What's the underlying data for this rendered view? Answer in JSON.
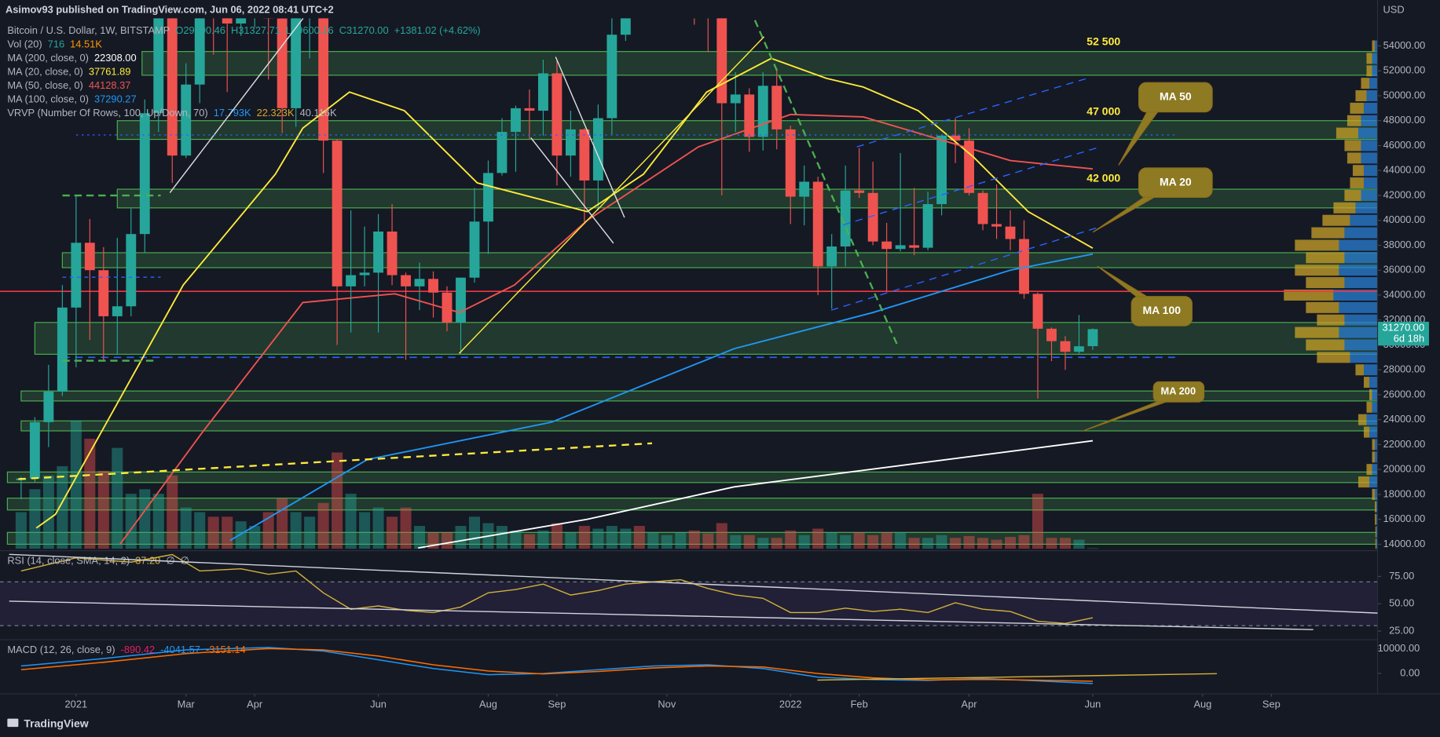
{
  "header": {
    "publisher": "Asimov93 published on TradingView.com, Jun 06, 2022 08:41 UTC+2"
  },
  "legend": [
    {
      "label": "Bitcoin / U.S. Dollar, 1W, BITSTAMP",
      "values": [
        "O29900.46",
        "H31327.71",
        "L29600.16",
        "C31270.00",
        "+1381.02 (+4.62%)"
      ],
      "colors": [
        "#26a69a",
        "#26a69a",
        "#26a69a",
        "#26a69a",
        "#26a69a"
      ]
    },
    {
      "label": "Vol (20)",
      "values": [
        "716",
        "14.51K"
      ],
      "colors": [
        "#26a69a",
        "#ff9800"
      ]
    },
    {
      "label": "MA (200, close, 0)",
      "values": [
        "22308.00"
      ],
      "colors": [
        "#ffffff"
      ]
    },
    {
      "label": "MA (20, close, 0)",
      "values": [
        "37761.89"
      ],
      "colors": [
        "#ffeb3b"
      ]
    },
    {
      "label": "MA (50, close, 0)",
      "values": [
        "44128.37"
      ],
      "colors": [
        "#ef5350"
      ]
    },
    {
      "label": "MA (100, close, 0)",
      "values": [
        "37290.27"
      ],
      "colors": [
        "#2196f3"
      ]
    },
    {
      "label": "VRVP (Number Of Rows, 100, Up/Down, 70)",
      "values": [
        "17.793K",
        "22.323K",
        "40.116K"
      ],
      "colors": [
        "#2196f3",
        "#d4a829",
        "#b2b5be"
      ]
    }
  ],
  "footer": {
    "brand": "TradingView"
  },
  "chart_data": {
    "type": "candlestick",
    "currency": "USD",
    "up_color": "#26a69a",
    "down_color": "#ef5350",
    "candles": {
      "open": [
        19150,
        19270,
        23800,
        26250,
        33000,
        38200,
        36000,
        32300,
        33100,
        38900,
        48600,
        57400,
        45200,
        50900,
        59000,
        57400,
        55800,
        57100,
        60000,
        56200,
        49000,
        56500,
        58300,
        46400,
        34700,
        35600,
        35800,
        39100,
        35600,
        34700,
        35300,
        34200,
        31800,
        35400,
        39900,
        43800,
        47100,
        49000,
        48800,
        51800,
        45200,
        47300,
        43200,
        48200,
        54900,
        61500,
        60900,
        61000,
        63300,
        65500,
        58700,
        57300,
        49400,
        50100,
        46700,
        50800,
        47300,
        41900,
        43100,
        36300,
        37900,
        42400,
        42200,
        38300,
        37700,
        38000,
        37800,
        41300,
        46800,
        46400,
        42200,
        39700,
        39500,
        38500,
        34100,
        31300,
        30300,
        29450,
        29900.46
      ],
      "high": [
        19420,
        24200,
        28400,
        34800,
        41950,
        40100,
        37850,
        38600,
        40950,
        49700,
        58350,
        57500,
        52600,
        61800,
        61000,
        58400,
        60000,
        61300,
        64800,
        57500,
        58500,
        59600,
        59600,
        46500,
        40800,
        39500,
        40500,
        41300,
        35800,
        36600,
        35900,
        34700,
        35400,
        42600,
        44800,
        48200,
        49200,
        50500,
        52900,
        52800,
        48800,
        47400,
        49300,
        56600,
        62500,
        67000,
        63700,
        64400,
        69000,
        66300,
        59600,
        59200,
        51900,
        50600,
        51900,
        52100,
        47600,
        44400,
        43500,
        38900,
        44400,
        45800,
        44700,
        39800,
        45400,
        42600,
        42300,
        46900,
        48200,
        47400,
        42400,
        42900,
        40800,
        40000,
        34200,
        31400,
        30700,
        32400,
        31327.71
      ],
      "low": [
        17600,
        19000,
        21800,
        25900,
        28200,
        30400,
        28800,
        29200,
        32300,
        37400,
        47100,
        43000,
        45000,
        49400,
        53300,
        50300,
        54800,
        55500,
        51300,
        47000,
        47500,
        53000,
        43800,
        30000,
        31000,
        34700,
        31000,
        34800,
        28800,
        32800,
        32200,
        31100,
        29300,
        35000,
        37300,
        43600,
        43900,
        46500,
        46800,
        42800,
        43500,
        39700,
        40800,
        46900,
        54400,
        59600,
        57800,
        59500,
        62300,
        55700,
        53500,
        42000,
        47100,
        45500,
        45600,
        45700,
        39700,
        39600,
        34000,
        32900,
        36300,
        41800,
        38000,
        34300,
        37500,
        37200,
        37600,
        40400,
        44600,
        42000,
        39200,
        38500,
        37600,
        33700,
        25700,
        28700,
        28000,
        29300,
        29600.16
      ],
      "close": [
        19270,
        23800,
        26250,
        33000,
        38200,
        36000,
        32300,
        33100,
        38900,
        48600,
        57400,
        45200,
        50900,
        59000,
        57400,
        55800,
        57100,
        60000,
        56200,
        49000,
        56500,
        58300,
        46400,
        34700,
        35600,
        35800,
        39100,
        35600,
        34700,
        35300,
        34200,
        31800,
        35400,
        39900,
        43800,
        47100,
        49000,
        48800,
        51800,
        45200,
        47300,
        43200,
        48200,
        54900,
        61500,
        60900,
        61000,
        63300,
        65500,
        58700,
        57300,
        49400,
        50100,
        46700,
        50800,
        47300,
        41900,
        43100,
        36300,
        37900,
        42400,
        42200,
        38300,
        37700,
        38000,
        37800,
        41300,
        46800,
        46400,
        42200,
        39700,
        39500,
        38500,
        34100,
        31300,
        30300,
        29450,
        29889,
        31270
      ]
    },
    "volume": {
      "values": [
        40000,
        65000,
        80000,
        90000,
        140000,
        120000,
        85000,
        110000,
        60000,
        65000,
        60000,
        80000,
        45000,
        40000,
        35000,
        35000,
        30000,
        25000,
        40000,
        55000,
        40000,
        35000,
        50000,
        105000,
        60000,
        40000,
        45000,
        35000,
        45000,
        25000,
        18000,
        18000,
        25000,
        35000,
        28000,
        25000,
        20000,
        16000,
        20000,
        28000,
        18000,
        25000,
        22000,
        25000,
        22000,
        25000,
        18000,
        15000,
        18000,
        20000,
        17000,
        28000,
        15000,
        15000,
        12000,
        12000,
        20000,
        15000,
        22000,
        18000,
        15000,
        18000,
        15000,
        18000,
        18000,
        12000,
        12000,
        15000,
        12000,
        14000,
        12000,
        10000,
        13000,
        15000,
        60000,
        12000,
        12000,
        10000,
        716
      ],
      "vlim": [
        0,
        580000
      ]
    },
    "ylim": [
      13630,
      56360
    ],
    "yticks": [
      {
        "value": 14000,
        "label": "14000.00"
      },
      {
        "value": 16000,
        "label": "16000.00"
      },
      {
        "value": 18000,
        "label": "18000.00"
      },
      {
        "value": 20000,
        "label": "20000.00"
      },
      {
        "value": 22000,
        "label": "22000.00"
      },
      {
        "value": 24000,
        "label": "24000.00"
      },
      {
        "value": 26000,
        "label": "26000.00"
      },
      {
        "value": 28000,
        "label": "28000.00"
      },
      {
        "value": 30000,
        "label": "30000.00"
      },
      {
        "value": 32000,
        "label": "32000.00"
      },
      {
        "value": 34000,
        "label": "34000.00"
      },
      {
        "value": 36000,
        "label": "36000.00"
      },
      {
        "value": 38000,
        "label": "38000.00"
      },
      {
        "value": 40000,
        "label": "40000.00"
      },
      {
        "value": 42000,
        "label": "42000.00"
      },
      {
        "value": 44000,
        "label": "44000.00"
      },
      {
        "value": 46000,
        "label": "46000.00"
      },
      {
        "value": 48000,
        "label": "48000.00"
      },
      {
        "value": 50000,
        "label": "50000.00"
      },
      {
        "value": 52000,
        "label": "52000.00"
      },
      {
        "value": 54000,
        "label": "54000.00"
      }
    ],
    "xticks": [
      {
        "value": 4,
        "label": "2021"
      },
      {
        "value": 12,
        "label": "Mar"
      },
      {
        "value": 17,
        "label": "Apr"
      },
      {
        "value": 26,
        "label": "Jun"
      },
      {
        "value": 34,
        "label": "Aug"
      },
      {
        "value": 39,
        "label": "Sep"
      },
      {
        "value": 47,
        "label": "Nov"
      },
      {
        "value": 56,
        "label": "2022"
      },
      {
        "value": 61,
        "label": "Feb"
      },
      {
        "value": 69,
        "label": "Apr"
      },
      {
        "value": 78,
        "label": "Jun"
      },
      {
        "value": 86,
        "label": "Aug"
      },
      {
        "value": 91,
        "label": "Sep"
      }
    ],
    "grid": false,
    "series": [
      {
        "name": "MA 20",
        "color": "#ffeb3b",
        "x": [
          1.1,
          2.5,
          11.8,
          18.5,
          20.5,
          23.9,
          27.9,
          33.2,
          41.2,
          45.3,
          49.9,
          54.6,
          58.6,
          61.3,
          65.3,
          69.3,
          73.3,
          78
        ],
        "values": [
          15300,
          16400,
          34800,
          43700,
          47400,
          50300,
          48800,
          43000,
          40700,
          43700,
          50300,
          53000,
          51400,
          50700,
          48800,
          45100,
          40700,
          37761.89
        ]
      },
      {
        "name": "MA 50",
        "color": "#ef5350",
        "x": [
          7.2,
          13.2,
          20.5,
          27.2,
          31.9,
          35.9,
          41.2,
          49.3,
          56,
          61.3,
          65.3,
          72,
          78
        ],
        "values": [
          14000,
          23000,
          33400,
          34100,
          32600,
          34800,
          40000,
          45900,
          48500,
          48300,
          47000,
          44800,
          44128.37
        ]
      },
      {
        "name": "MA 100",
        "color": "#2196f3",
        "x": [
          15.2,
          25.2,
          38.6,
          51.9,
          62,
          72,
          78
        ],
        "values": [
          14300,
          20800,
          23800,
          29700,
          32600,
          36000,
          37290.27
        ]
      },
      {
        "name": "MA 200",
        "color": "#ffffff",
        "x": [
          28.9,
          41.2,
          51.9,
          65.3,
          78
        ],
        "values": [
          13700,
          16000,
          18600,
          20500,
          22308
        ]
      }
    ],
    "zones": [
      {
        "low": 51650,
        "high": 53550,
        "from": 8.8
      },
      {
        "low": 46500,
        "high": 48000,
        "from": 7
      },
      {
        "low": 41000,
        "high": 42500,
        "from": 7
      },
      {
        "low": 36200,
        "high": 37400,
        "from": 3
      },
      {
        "low": 29250,
        "high": 31800,
        "from": 1
      },
      {
        "low": 25500,
        "high": 26300,
        "from": 0
      },
      {
        "low": 23100,
        "high": 23900,
        "from": 0
      },
      {
        "low": 18950,
        "high": 19800,
        "from": -1
      },
      {
        "low": 16750,
        "high": 17700,
        "from": -1
      },
      {
        "low": 14000,
        "high": 14950,
        "from": -1
      }
    ],
    "levels": [
      {
        "value": 34300,
        "color": "#f23645",
        "from": -2,
        "to": 100
      },
      {
        "value": 29000,
        "color": "#2962ff",
        "from": 3,
        "to": 84
      }
    ],
    "last_price": {
      "value": 31270,
      "label": "31270.00",
      "countdown": "6d 18h"
    },
    "annotations": [
      "52 500",
      "47 000",
      "42 000"
    ],
    "callouts": [
      "MA 50",
      "MA 20",
      "MA 100",
      "MA 200"
    ],
    "profile": {
      "prices": [
        14000,
        15000,
        16000,
        17000,
        18000,
        19000,
        20000,
        21000,
        22000,
        23000,
        24000,
        25000,
        26000,
        27000,
        28000,
        29000,
        30000,
        31000,
        32000,
        33000,
        34000,
        35000,
        36000,
        37000,
        38000,
        39000,
        40000,
        41000,
        42000,
        43000,
        44000,
        45000,
        46000,
        47000,
        48000,
        49000,
        50000,
        51000,
        52000,
        53000,
        54000
      ],
      "up": [
        0.5,
        0.5,
        0.5,
        0.5,
        1,
        3,
        2,
        1,
        1,
        3,
        4,
        2,
        2,
        3,
        5,
        10,
        12,
        14,
        12,
        14,
        16,
        12,
        14,
        12,
        14,
        12,
        10,
        8,
        6,
        5,
        5,
        6,
        6,
        7,
        6,
        5,
        4,
        3,
        2,
        2,
        1
      ],
      "down": [
        0.3,
        0.3,
        0.5,
        0.5,
        1,
        4,
        2,
        1,
        1,
        2,
        3,
        2,
        1,
        2,
        3,
        12,
        14,
        16,
        10,
        12,
        18,
        14,
        16,
        14,
        16,
        12,
        10,
        8,
        6,
        5,
        4,
        5,
        6,
        8,
        5,
        5,
        4,
        3,
        2,
        2,
        1
      ],
      "xlim": [
        0,
        40
      ],
      "up_color": "#2a7fd4",
      "down_color": "#c9a227"
    },
    "rsi": {
      "type": "line",
      "legend": {
        "label": "RSI (14, close, SMA, 14, 2)",
        "values": [
          "37.20",
          "∅",
          "∅"
        ],
        "colors": [
          "#d4b13a",
          "#b2b5be",
          "#b2b5be"
        ]
      },
      "color": "#d4b13a",
      "ylim": [
        18,
        96
      ],
      "band": [
        30,
        70
      ],
      "yticks": [
        {
          "value": 75,
          "label": "75.00"
        },
        {
          "value": 50,
          "label": "50.00"
        },
        {
          "value": 25,
          "label": "25.00"
        }
      ],
      "x": [
        0,
        4,
        8,
        11,
        13,
        16,
        18,
        20,
        22,
        24,
        26,
        28,
        30,
        32,
        34,
        36,
        38,
        40,
        42,
        44,
        46,
        48,
        50,
        52,
        54,
        56,
        58,
        60,
        62,
        64,
        66,
        68,
        70,
        72,
        74,
        76,
        78
      ],
      "values": [
        80,
        92,
        88,
        95,
        80,
        82,
        77,
        80,
        60,
        45,
        48,
        44,
        42,
        47,
        60,
        63,
        68,
        58,
        62,
        68,
        70,
        72,
        64,
        58,
        55,
        42,
        42,
        46,
        43,
        45,
        42,
        51,
        45,
        43,
        34,
        32,
        37.2
      ]
    },
    "macd": {
      "type": "line",
      "legend": {
        "label": "MACD (12, 26, close, 9)",
        "values": [
          "-890.42",
          "-4041.57",
          "-3151.14"
        ],
        "colors": [
          "#e91e63",
          "#2196f3",
          "#ff6d00"
        ]
      },
      "ylim": [
        -7860,
        12860
      ],
      "yticks": [
        {
          "value": 10000,
          "label": "10000.00"
        },
        {
          "value": 0,
          "label": "0.00"
        }
      ],
      "series": [
        {
          "name": "MACD",
          "color": "#2196f3",
          "x": [
            0,
            6,
            12,
            18,
            22,
            26,
            30,
            34,
            38,
            42,
            46,
            50,
            54,
            58,
            62,
            66,
            70,
            74,
            78
          ],
          "values": [
            3000,
            6000,
            9500,
            10500,
            9000,
            5500,
            2000,
            -500,
            0,
            1500,
            3000,
            3500,
            2000,
            -1500,
            -2500,
            -2800,
            -2000,
            -3000,
            -4041.57
          ]
        },
        {
          "name": "Signal",
          "color": "#ff6d00",
          "x": [
            0,
            6,
            12,
            18,
            22,
            26,
            30,
            34,
            38,
            42,
            46,
            50,
            54,
            58,
            62,
            66,
            70,
            74,
            78
          ],
          "values": [
            1500,
            4500,
            8000,
            10000,
            9500,
            7000,
            3500,
            1000,
            -200,
            800,
            2200,
            3000,
            2600,
            0,
            -1800,
            -2600,
            -2400,
            -2700,
            -3151.14
          ]
        }
      ]
    }
  }
}
